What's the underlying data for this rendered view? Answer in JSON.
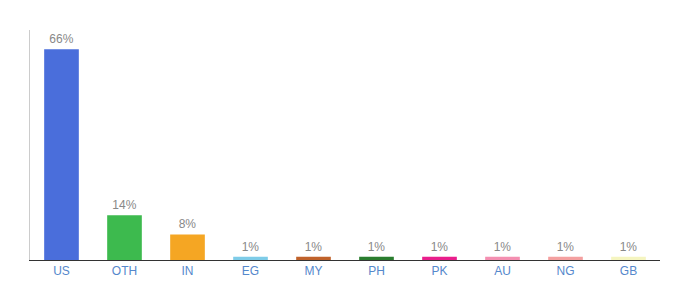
{
  "chart_data": {
    "type": "bar",
    "categories": [
      "US",
      "OTH",
      "IN",
      "EG",
      "MY",
      "PH",
      "PK",
      "AU",
      "NG",
      "GB"
    ],
    "values": [
      66,
      14,
      8,
      1,
      1,
      1,
      1,
      1,
      1,
      1
    ],
    "value_labels": [
      "66%",
      "14%",
      "8%",
      "1%",
      "1%",
      "1%",
      "1%",
      "1%",
      "1%",
      "1%"
    ],
    "colors": [
      "#4a6edb",
      "#3dba4e",
      "#f5a623",
      "#7ecce8",
      "#c0622b",
      "#2a7d2e",
      "#e91e8c",
      "#f48fb1",
      "#f4a0a0",
      "#f5f5c0"
    ],
    "ylim": [
      0,
      72
    ],
    "grid": false,
    "data_labels": true,
    "tick_labels": "x"
  }
}
